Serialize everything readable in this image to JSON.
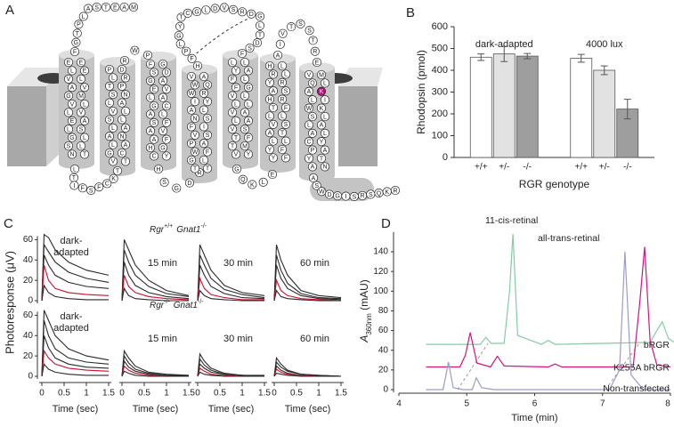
{
  "diagram": {
    "panel_label": "A",
    "segments": [
      "MAETSALPTGF",
      "EELEVLAVGMVLLVEALSGLSLNT",
      "LTIFSFCKT",
      "PDLRTPSNLAVLSLLAANLAGCVT",
      "RWP",
      "FGSDGAEVLAGCALSFAVAFHGCY",
      "HSGDR",
      "VAWQWRIYALNSFIVSPAWFGLTT",
      "HFPLGYTCGLDVSRDGLTDSF",
      "LLYAFLFGVLLLVALAVSTFTMVY",
      "GQKLE",
      "HLRLYRASHRTFLLVSATLLYFYF",
      "AIVTSSTRE",
      "VMQLAKLIWKSLLAALCYPAYTAN",
      "ASWDGISRSQKR"
    ],
    "highlight": {
      "segment": 13,
      "residue": 5,
      "color": "#b5137a"
    }
  },
  "chart_data": [
    {
      "type": "bar",
      "panel_label": "B",
      "ylabel": "Rhodopsin (pmol)",
      "xlabel": "RGR genotype",
      "categories": [
        "dark-adapted",
        "4000 lux"
      ],
      "series": [
        {
          "name": "+/+",
          "color": "#ffffff",
          "values": [
            460,
            455
          ],
          "errors": [
            15,
            18
          ]
        },
        {
          "name": "+/-",
          "color": "#e2e2e2",
          "values": [
            475,
            400
          ],
          "errors": [
            35,
            20
          ]
        },
        {
          "name": "-/-",
          "color": "#9e9e9e",
          "values": [
            465,
            222
          ],
          "errors": [
            12,
            45
          ]
        }
      ],
      "ylim": [
        0,
        600
      ],
      "yticks": [
        0,
        100,
        200,
        300,
        400,
        500,
        600
      ]
    },
    {
      "type": "line-grid",
      "panel_label": "C",
      "ylabel": "Photoresponse (μV)",
      "xlabel": "Time (sec)",
      "x": [
        0,
        0.05,
        0.15,
        0.3,
        0.6,
        1.0,
        1.5
      ],
      "xlim": [
        0,
        1.5
      ],
      "xticks": [
        0,
        0.5,
        1,
        1.5
      ],
      "ylim": [
        0,
        70
      ],
      "yticks": [
        0,
        20,
        40,
        60
      ],
      "rows": [
        {
          "title": [
            "Rgr",
            "+/+",
            "Gnat1",
            "-/-"
          ],
          "panels": [
            {
              "label": [
                "dark-",
                "adapted"
              ],
              "series": [
                {
                  "color": "#2a2a2a",
                  "values": [
                    0,
                    65,
                    62,
                    50,
                    38,
                    30,
                    25
                  ]
                },
                {
                  "color": "#2a2a2a",
                  "values": [
                    0,
                    55,
                    48,
                    38,
                    28,
                    22,
                    18
                  ]
                },
                {
                  "color": "#2a2a2a",
                  "values": [
                    0,
                    45,
                    35,
                    25,
                    18,
                    14,
                    12
                  ]
                },
                {
                  "color": "#c8102e",
                  "values": [
                    0,
                    35,
                    20,
                    12,
                    8,
                    6,
                    5
                  ]
                },
                {
                  "color": "#2a2a2a",
                  "values": [
                    0,
                    15,
                    8,
                    4,
                    2,
                    1,
                    1
                  ]
                }
              ]
            },
            {
              "label": "15 min",
              "series": [
                {
                  "color": "#2a2a2a",
                  "values": [
                    0,
                    60,
                    50,
                    35,
                    20,
                    10,
                    5
                  ]
                },
                {
                  "color": "#2a2a2a",
                  "values": [
                    0,
                    50,
                    38,
                    25,
                    14,
                    7,
                    4
                  ]
                },
                {
                  "color": "#2a2a2a",
                  "values": [
                    0,
                    38,
                    25,
                    15,
                    8,
                    4,
                    2
                  ]
                },
                {
                  "color": "#c8102e",
                  "values": [
                    0,
                    25,
                    14,
                    8,
                    4,
                    2,
                    1
                  ]
                },
                {
                  "color": "#2a2a2a",
                  "values": [
                    0,
                    12,
                    5,
                    2,
                    1,
                    0,
                    0
                  ]
                }
              ]
            },
            {
              "label": "30 min",
              "series": [
                {
                  "color": "#2a2a2a",
                  "values": [
                    0,
                    55,
                    45,
                    30,
                    15,
                    8,
                    5
                  ]
                },
                {
                  "color": "#2a2a2a",
                  "values": [
                    0,
                    45,
                    35,
                    22,
                    11,
                    6,
                    3
                  ]
                },
                {
                  "color": "#2a2a2a",
                  "values": [
                    0,
                    35,
                    25,
                    14,
                    7,
                    3,
                    2
                  ]
                },
                {
                  "color": "#c8102e",
                  "values": [
                    0,
                    22,
                    12,
                    6,
                    3,
                    1,
                    1
                  ]
                },
                {
                  "color": "#2a2a2a",
                  "values": [
                    0,
                    10,
                    5,
                    2,
                    1,
                    0,
                    0
                  ]
                }
              ]
            },
            {
              "label": "60 min",
              "series": [
                {
                  "color": "#2a2a2a",
                  "values": [
                    0,
                    55,
                    40,
                    25,
                    10,
                    5,
                    3
                  ]
                },
                {
                  "color": "#2a2a2a",
                  "values": [
                    0,
                    45,
                    30,
                    17,
                    7,
                    3,
                    2
                  ]
                },
                {
                  "color": "#2a2a2a",
                  "values": [
                    0,
                    35,
                    22,
                    12,
                    5,
                    2,
                    1
                  ]
                },
                {
                  "color": "#c8102e",
                  "values": [
                    0,
                    20,
                    10,
                    5,
                    2,
                    1,
                    0
                  ]
                },
                {
                  "color": "#2a2a2a",
                  "values": [
                    0,
                    10,
                    4,
                    2,
                    1,
                    0,
                    0
                  ]
                }
              ]
            }
          ]
        },
        {
          "title": [
            "Rgr",
            "-/-",
            "Gnat1",
            "-/-"
          ],
          "panels": [
            {
              "label": [
                "dark-",
                "adapted"
              ],
              "series": [
                {
                  "color": "#2a2a2a",
                  "values": [
                    0,
                    65,
                    55,
                    40,
                    27,
                    20,
                    16
                  ]
                },
                {
                  "color": "#2a2a2a",
                  "values": [
                    0,
                    55,
                    40,
                    27,
                    18,
                    14,
                    12
                  ]
                },
                {
                  "color": "#2a2a2a",
                  "values": [
                    0,
                    40,
                    28,
                    18,
                    12,
                    9,
                    8
                  ]
                },
                {
                  "color": "#c8102e",
                  "values": [
                    0,
                    25,
                    18,
                    12,
                    8,
                    6,
                    5
                  ]
                },
                {
                  "color": "#2a2a2a",
                  "values": [
                    0,
                    12,
                    7,
                    4,
                    2,
                    1,
                    1
                  ]
                }
              ]
            },
            {
              "label": "15 min",
              "series": [
                {
                  "color": "#2a2a2a",
                  "values": [
                    0,
                    25,
                    18,
                    10,
                    4,
                    2,
                    1
                  ]
                },
                {
                  "color": "#2a2a2a",
                  "values": [
                    0,
                    20,
                    13,
                    7,
                    3,
                    1,
                    1
                  ]
                },
                {
                  "color": "#2a2a2a",
                  "values": [
                    0,
                    15,
                    9,
                    5,
                    2,
                    1,
                    0
                  ]
                },
                {
                  "color": "#c8102e",
                  "values": [
                    0,
                    10,
                    6,
                    3,
                    1,
                    0,
                    0
                  ]
                },
                {
                  "color": "#2a2a2a",
                  "values": [
                    0,
                    5,
                    3,
                    1,
                    0,
                    0,
                    0
                  ]
                }
              ]
            },
            {
              "label": "30 min",
              "series": [
                {
                  "color": "#2a2a2a",
                  "values": [
                    0,
                    22,
                    15,
                    8,
                    3,
                    1,
                    1
                  ]
                },
                {
                  "color": "#2a2a2a",
                  "values": [
                    0,
                    17,
                    11,
                    6,
                    2,
                    1,
                    0
                  ]
                },
                {
                  "color": "#2a2a2a",
                  "values": [
                    0,
                    12,
                    8,
                    4,
                    2,
                    1,
                    0
                  ]
                },
                {
                  "color": "#c8102e",
                  "values": [
                    0,
                    8,
                    5,
                    2,
                    1,
                    0,
                    0
                  ]
                },
                {
                  "color": "#2a2a2a",
                  "values": [
                    0,
                    4,
                    2,
                    1,
                    0,
                    0,
                    0
                  ]
                }
              ]
            },
            {
              "label": "60 min",
              "series": [
                {
                  "color": "#2a2a2a",
                  "values": [
                    0,
                    18,
                    12,
                    6,
                    2,
                    1,
                    0
                  ]
                },
                {
                  "color": "#2a2a2a",
                  "values": [
                    0,
                    14,
                    9,
                    5,
                    2,
                    1,
                    0
                  ]
                },
                {
                  "color": "#2a2a2a",
                  "values": [
                    0,
                    10,
                    6,
                    3,
                    1,
                    0,
                    0
                  ]
                },
                {
                  "color": "#c8102e",
                  "values": [
                    0,
                    7,
                    4,
                    2,
                    1,
                    0,
                    0
                  ]
                },
                {
                  "color": "#2a2a2a",
                  "values": [
                    0,
                    3,
                    2,
                    1,
                    0,
                    0,
                    0
                  ]
                }
              ]
            }
          ]
        }
      ]
    },
    {
      "type": "line",
      "panel_label": "D",
      "xlabel": "Time (min)",
      "ylabel": [
        "A",
        "360nm",
        " (mAU)"
      ],
      "xlim": [
        4,
        8
      ],
      "xticks": [
        4,
        5,
        6,
        7,
        8
      ],
      "ylim": [
        0,
        160
      ],
      "yticks": [
        0,
        20,
        40,
        60,
        80,
        100,
        120,
        140
      ],
      "annotations": [
        "11-cis-retinal",
        "all-trans-retinal"
      ],
      "series": [
        {
          "name": "bRGR",
          "color": "#86cba6",
          "x": [
            4.4,
            5.2,
            5.28,
            5.36,
            5.55,
            5.63,
            5.68,
            5.75,
            6.1,
            6.2,
            6.3,
            7.7,
            7.8,
            7.88,
            7.97,
            8.1
          ],
          "values": [
            46,
            46,
            53,
            47,
            47,
            100,
            158,
            55,
            46,
            50,
            46,
            48,
            60,
            69,
            52,
            46
          ]
        },
        {
          "name": "K255A bRGR",
          "color": "#d4147f",
          "x": [
            4.4,
            4.9,
            4.98,
            5.05,
            5.15,
            5.35,
            5.45,
            5.55,
            6.2,
            6.3,
            6.4,
            7.45,
            7.55,
            7.62,
            7.7,
            7.8,
            8.0
          ],
          "values": [
            23,
            23,
            35,
            58,
            27,
            23,
            34,
            24,
            23,
            26,
            23,
            23,
            90,
            145,
            50,
            25,
            23
          ]
        },
        {
          "name": "Non-transfected",
          "color": "#9c9cc9",
          "x": [
            4.4,
            4.65,
            4.73,
            4.8,
            4.95,
            5.08,
            5.14,
            5.22,
            5.4,
            7.1,
            7.25,
            7.33,
            7.42,
            7.6,
            8.0
          ],
          "values": [
            0,
            0,
            28,
            2,
            0,
            0,
            12,
            2,
            0,
            0,
            20,
            140,
            15,
            0,
            0
          ]
        }
      ]
    }
  ]
}
